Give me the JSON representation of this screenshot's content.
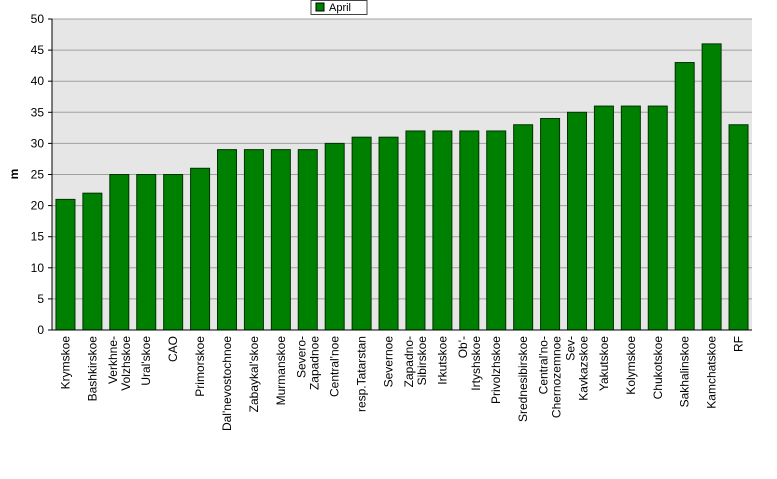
{
  "chart_data": {
    "type": "bar",
    "y_label": "m",
    "categories": [
      "Krymskoe",
      "Bashkirskoe",
      "Verkhne-\nVolzhskoe",
      "Ural'skoe",
      "CAO",
      "Primorskoe",
      "Dal'nevostochnoe",
      "Zabaykal'skoe",
      "Murmanskoe",
      "Severo-\nZapadnoe",
      "Central'noe",
      "resp.Tatarstan",
      "Severnoe",
      "Zapadno-\nSibirskoe",
      "Irkutskoe",
      "Ob'-\nIrtyshskoe",
      "Privolzhskoe",
      "Srednesibirskoe",
      "Central'no-\nChernozemnoe",
      "Sev-\nKavkazskoe",
      "Yakutskoe",
      "Kolymskoe",
      "Chukotskoe",
      "Sakhalinskoe",
      "Kamchatskoe",
      "RF"
    ],
    "series": [
      {
        "name": "April",
        "color": "#008000",
        "values": [
          21,
          22,
          25,
          25,
          25,
          26,
          29,
          29,
          29,
          29,
          30,
          31,
          31,
          32,
          32,
          32,
          32,
          33,
          34,
          35,
          36,
          36,
          36,
          43,
          46,
          33
        ]
      }
    ],
    "ylim": [
      0,
      50
    ],
    "yticks": [
      0,
      5,
      10,
      15,
      20,
      25,
      30,
      35,
      40,
      45,
      50
    ],
    "grid": true
  }
}
